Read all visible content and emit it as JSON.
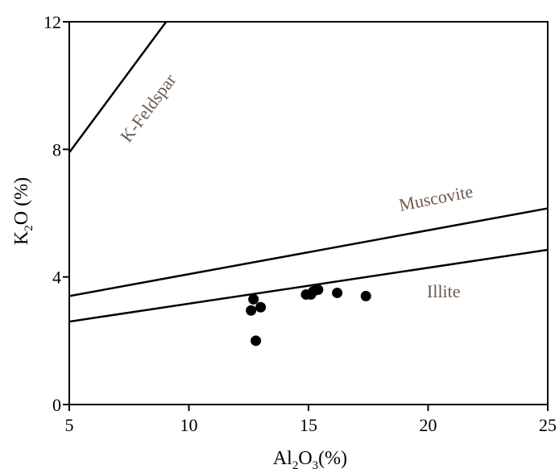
{
  "chart_data": {
    "type": "scatter",
    "title": "",
    "xlabel": {
      "main": "Al",
      "sub1": "2",
      "mid": "O",
      "sub2": "3",
      "tail": "(%)"
    },
    "ylabel": {
      "main": "K",
      "sub": "2",
      "tail": "O (%)"
    },
    "xlim": [
      5,
      25
    ],
    "ylim": [
      0,
      12
    ],
    "xticks": [
      5,
      10,
      15,
      20,
      25
    ],
    "yticks": [
      0,
      4,
      8,
      12
    ],
    "grid": false,
    "reference_lines": [
      {
        "name": "K-Feldspar",
        "x": [
          5,
          9.05
        ],
        "y": [
          7.9,
          12.0
        ]
      },
      {
        "name": "Muscovite",
        "x": [
          5,
          25
        ],
        "y": [
          3.4,
          6.15
        ]
      },
      {
        "name": "Illite",
        "x": [
          5,
          25
        ],
        "y": [
          2.6,
          4.85
        ]
      }
    ],
    "points": [
      {
        "x": 12.6,
        "y": 2.95
      },
      {
        "x": 12.7,
        "y": 3.3
      },
      {
        "x": 12.8,
        "y": 2.0
      },
      {
        "x": 13.0,
        "y": 3.05
      },
      {
        "x": 14.9,
        "y": 3.45
      },
      {
        "x": 15.1,
        "y": 3.45
      },
      {
        "x": 15.2,
        "y": 3.55
      },
      {
        "x": 15.4,
        "y": 3.6
      },
      {
        "x": 16.2,
        "y": 3.5
      },
      {
        "x": 17.4,
        "y": 3.4
      }
    ],
    "colors": {
      "line": "#000000",
      "point": "#000000",
      "label": "#6b5a4e"
    }
  }
}
